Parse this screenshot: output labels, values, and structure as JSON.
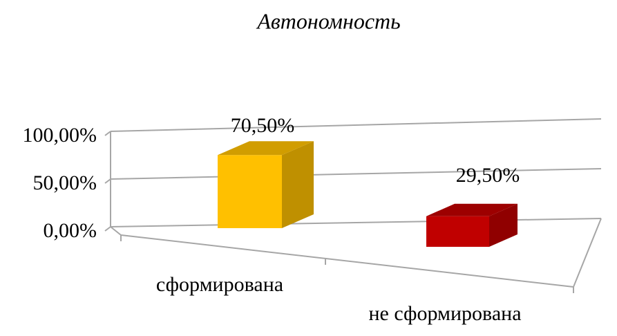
{
  "chart_data": {
    "type": "bar3d",
    "title": "Автономность",
    "categories": [
      "сформирована",
      "не сформирована"
    ],
    "values": [
      70.5,
      29.5
    ],
    "value_labels": [
      "70,50%",
      "29,50%"
    ],
    "colors": [
      "#ffc000",
      "#c00000"
    ],
    "ylim": [
      0,
      100
    ],
    "yticks": [
      {
        "value": 0,
        "label": "0,00%"
      },
      {
        "value": 50,
        "label": "50,00%"
      },
      {
        "value": 100,
        "label": "100,00%"
      }
    ],
    "grid": true
  }
}
